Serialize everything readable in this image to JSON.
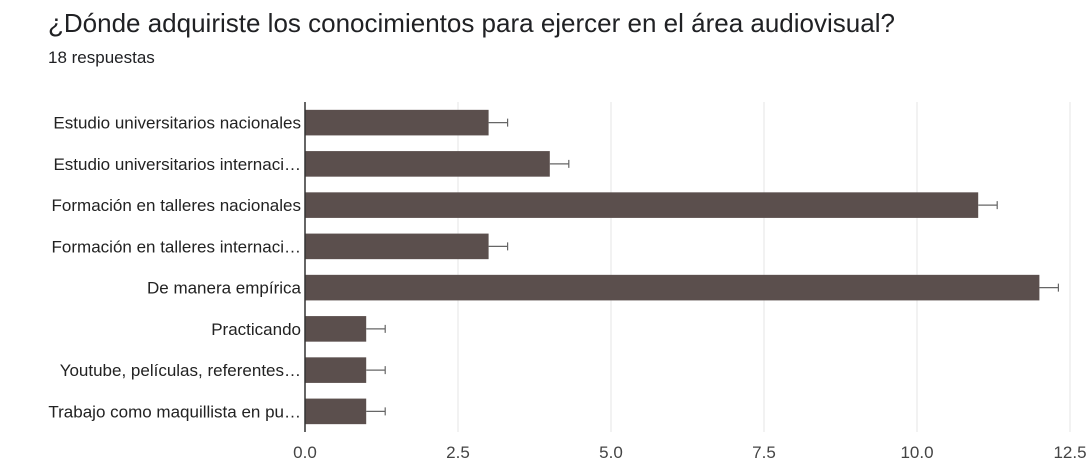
{
  "header": {
    "title": "¿Dónde adquiriste los conocimientos para ejercer en el área audiovisual?",
    "response_count": "18 respuestas"
  },
  "chart_data": {
    "type": "bar",
    "orientation": "horizontal",
    "categories": [
      "Estudio universitarios nacionales",
      "Estudio universitarios internaci…",
      "Formación en talleres nacionales",
      "Formación en talleres internaci…",
      "De manera empírica",
      "Practicando",
      "Youtube, películas, referentes…",
      "Trabajo como maquillista en pu…"
    ],
    "values": [
      3,
      4,
      11,
      3,
      12,
      1,
      1,
      1
    ],
    "error_bars": true,
    "xlim": [
      0,
      12.5
    ],
    "xticks": [
      "0.0",
      "2.5",
      "5.0",
      "7.5",
      "10.0",
      "12.5"
    ],
    "xlabel": "",
    "ylabel": "",
    "grid": true,
    "legend": "none",
    "colors": {
      "bar": "#5b4f4d",
      "grid": "#e6e6e6",
      "axis": "#333333",
      "error": "#666666"
    }
  }
}
